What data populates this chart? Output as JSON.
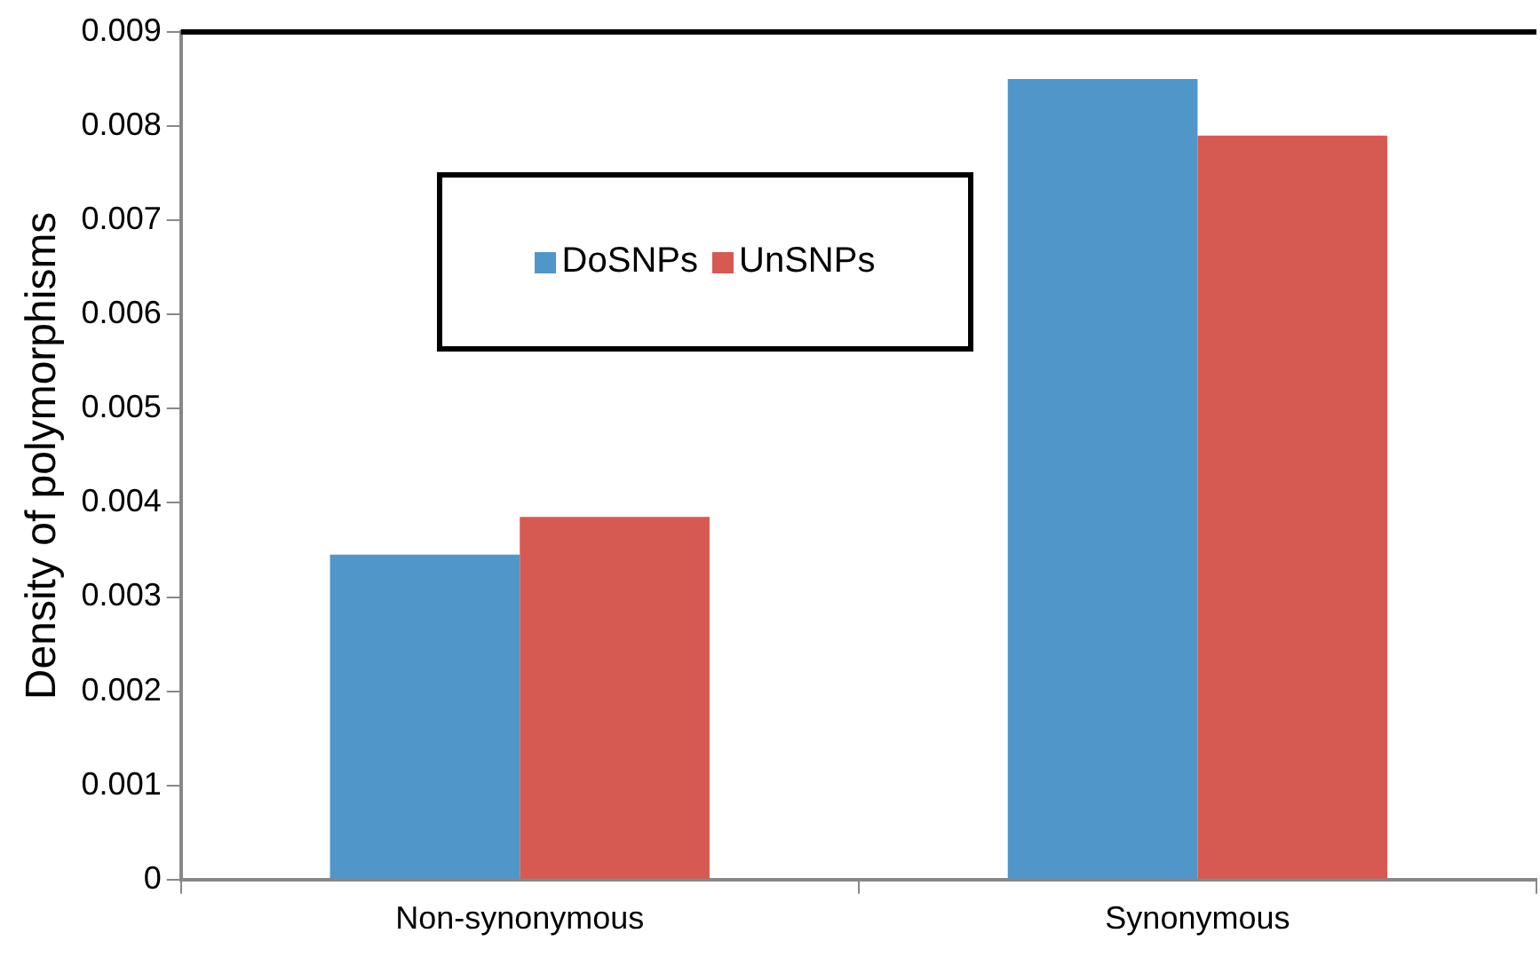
{
  "chart_data": {
    "type": "bar",
    "ylabel": "Density of polymorphisms",
    "categories": [
      "Non-synonymous",
      "Synonymous"
    ],
    "series": [
      {
        "name": "DoSNPs",
        "color": "#5096c8",
        "values": [
          0.00345,
          0.0085
        ]
      },
      {
        "name": "UnSNPs",
        "color": "#d65a52",
        "values": [
          0.00385,
          0.0079
        ]
      }
    ],
    "ylim": [
      0,
      0.009
    ],
    "yticks": [
      0,
      0.001,
      0.002,
      0.003,
      0.004,
      0.005,
      0.006,
      0.007,
      0.008,
      0.009
    ],
    "grid": false,
    "legend": "top left"
  }
}
